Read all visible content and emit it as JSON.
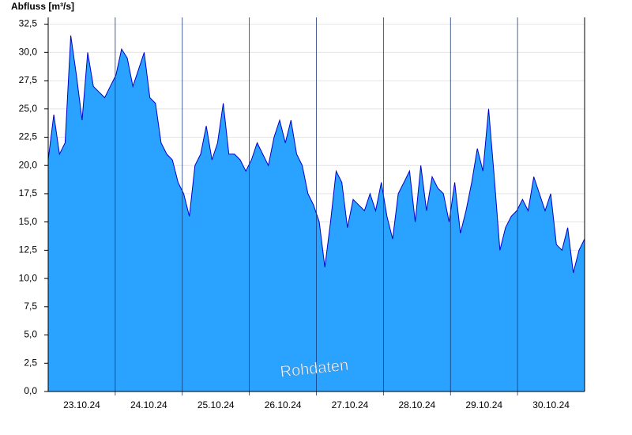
{
  "chart_data": {
    "type": "area",
    "y_label": "Abfluss [m³/s]",
    "annotation": "Rohdaten",
    "categories": [
      "23.10.24",
      "24.10.24",
      "25.10.24",
      "26.10.24",
      "27.10.24",
      "28.10.24",
      "29.10.24",
      "30.10.24"
    ],
    "values": [
      [
        20.5,
        24.5,
        21,
        22,
        31.5,
        28,
        24,
        30,
        27,
        26.5,
        26,
        27
      ],
      [
        28,
        30.3,
        29.5,
        27,
        28.5,
        30,
        26,
        25.5,
        22,
        21,
        20.5,
        18.5
      ],
      [
        17.5,
        15.5,
        20,
        21,
        23.5,
        20.5,
        22,
        25.5,
        21,
        21,
        20.5,
        19.5
      ],
      [
        20.5,
        22,
        21,
        20,
        22.5,
        24,
        22,
        24,
        21,
        20,
        17.5,
        16.5
      ],
      [
        15,
        11,
        15,
        19.5,
        18.5,
        14.5,
        17,
        16.5,
        16,
        17.5,
        16,
        18.5
      ],
      [
        15.5,
        13.5,
        17.5,
        18.5,
        19.5,
        15,
        20,
        16,
        19,
        18,
        17.5,
        15
      ],
      [
        18.5,
        14,
        16,
        18.5,
        21.5,
        19.5,
        25,
        19,
        12.5,
        14.5,
        15.5,
        16
      ],
      [
        17,
        16,
        19,
        17.5,
        16,
        17.5,
        13,
        12.5,
        14.5,
        10.5,
        12.5,
        13.5
      ]
    ],
    "fill_color": "#29a3ff",
    "line_color": "#0000cc",
    "ylim": [
      0,
      33.1
    ],
    "yticks": [
      {
        "value": 0,
        "label": "0,0"
      },
      {
        "value": 2.5,
        "label": "2,5"
      },
      {
        "value": 5,
        "label": "5,0"
      },
      {
        "value": 7.5,
        "label": "7,5"
      },
      {
        "value": 10,
        "label": "10,0"
      },
      {
        "value": 12.5,
        "label": "12,5"
      },
      {
        "value": 15,
        "label": "15,0"
      },
      {
        "value": 17.5,
        "label": "17,5"
      },
      {
        "value": 20,
        "label": "20,0"
      },
      {
        "value": 22.5,
        "label": "22,5"
      },
      {
        "value": 25,
        "label": "25,0"
      },
      {
        "value": 27.5,
        "label": "27,5"
      },
      {
        "value": 30,
        "label": "30,0"
      },
      {
        "value": 32.5,
        "label": "32,5"
      }
    ],
    "grid": true
  }
}
